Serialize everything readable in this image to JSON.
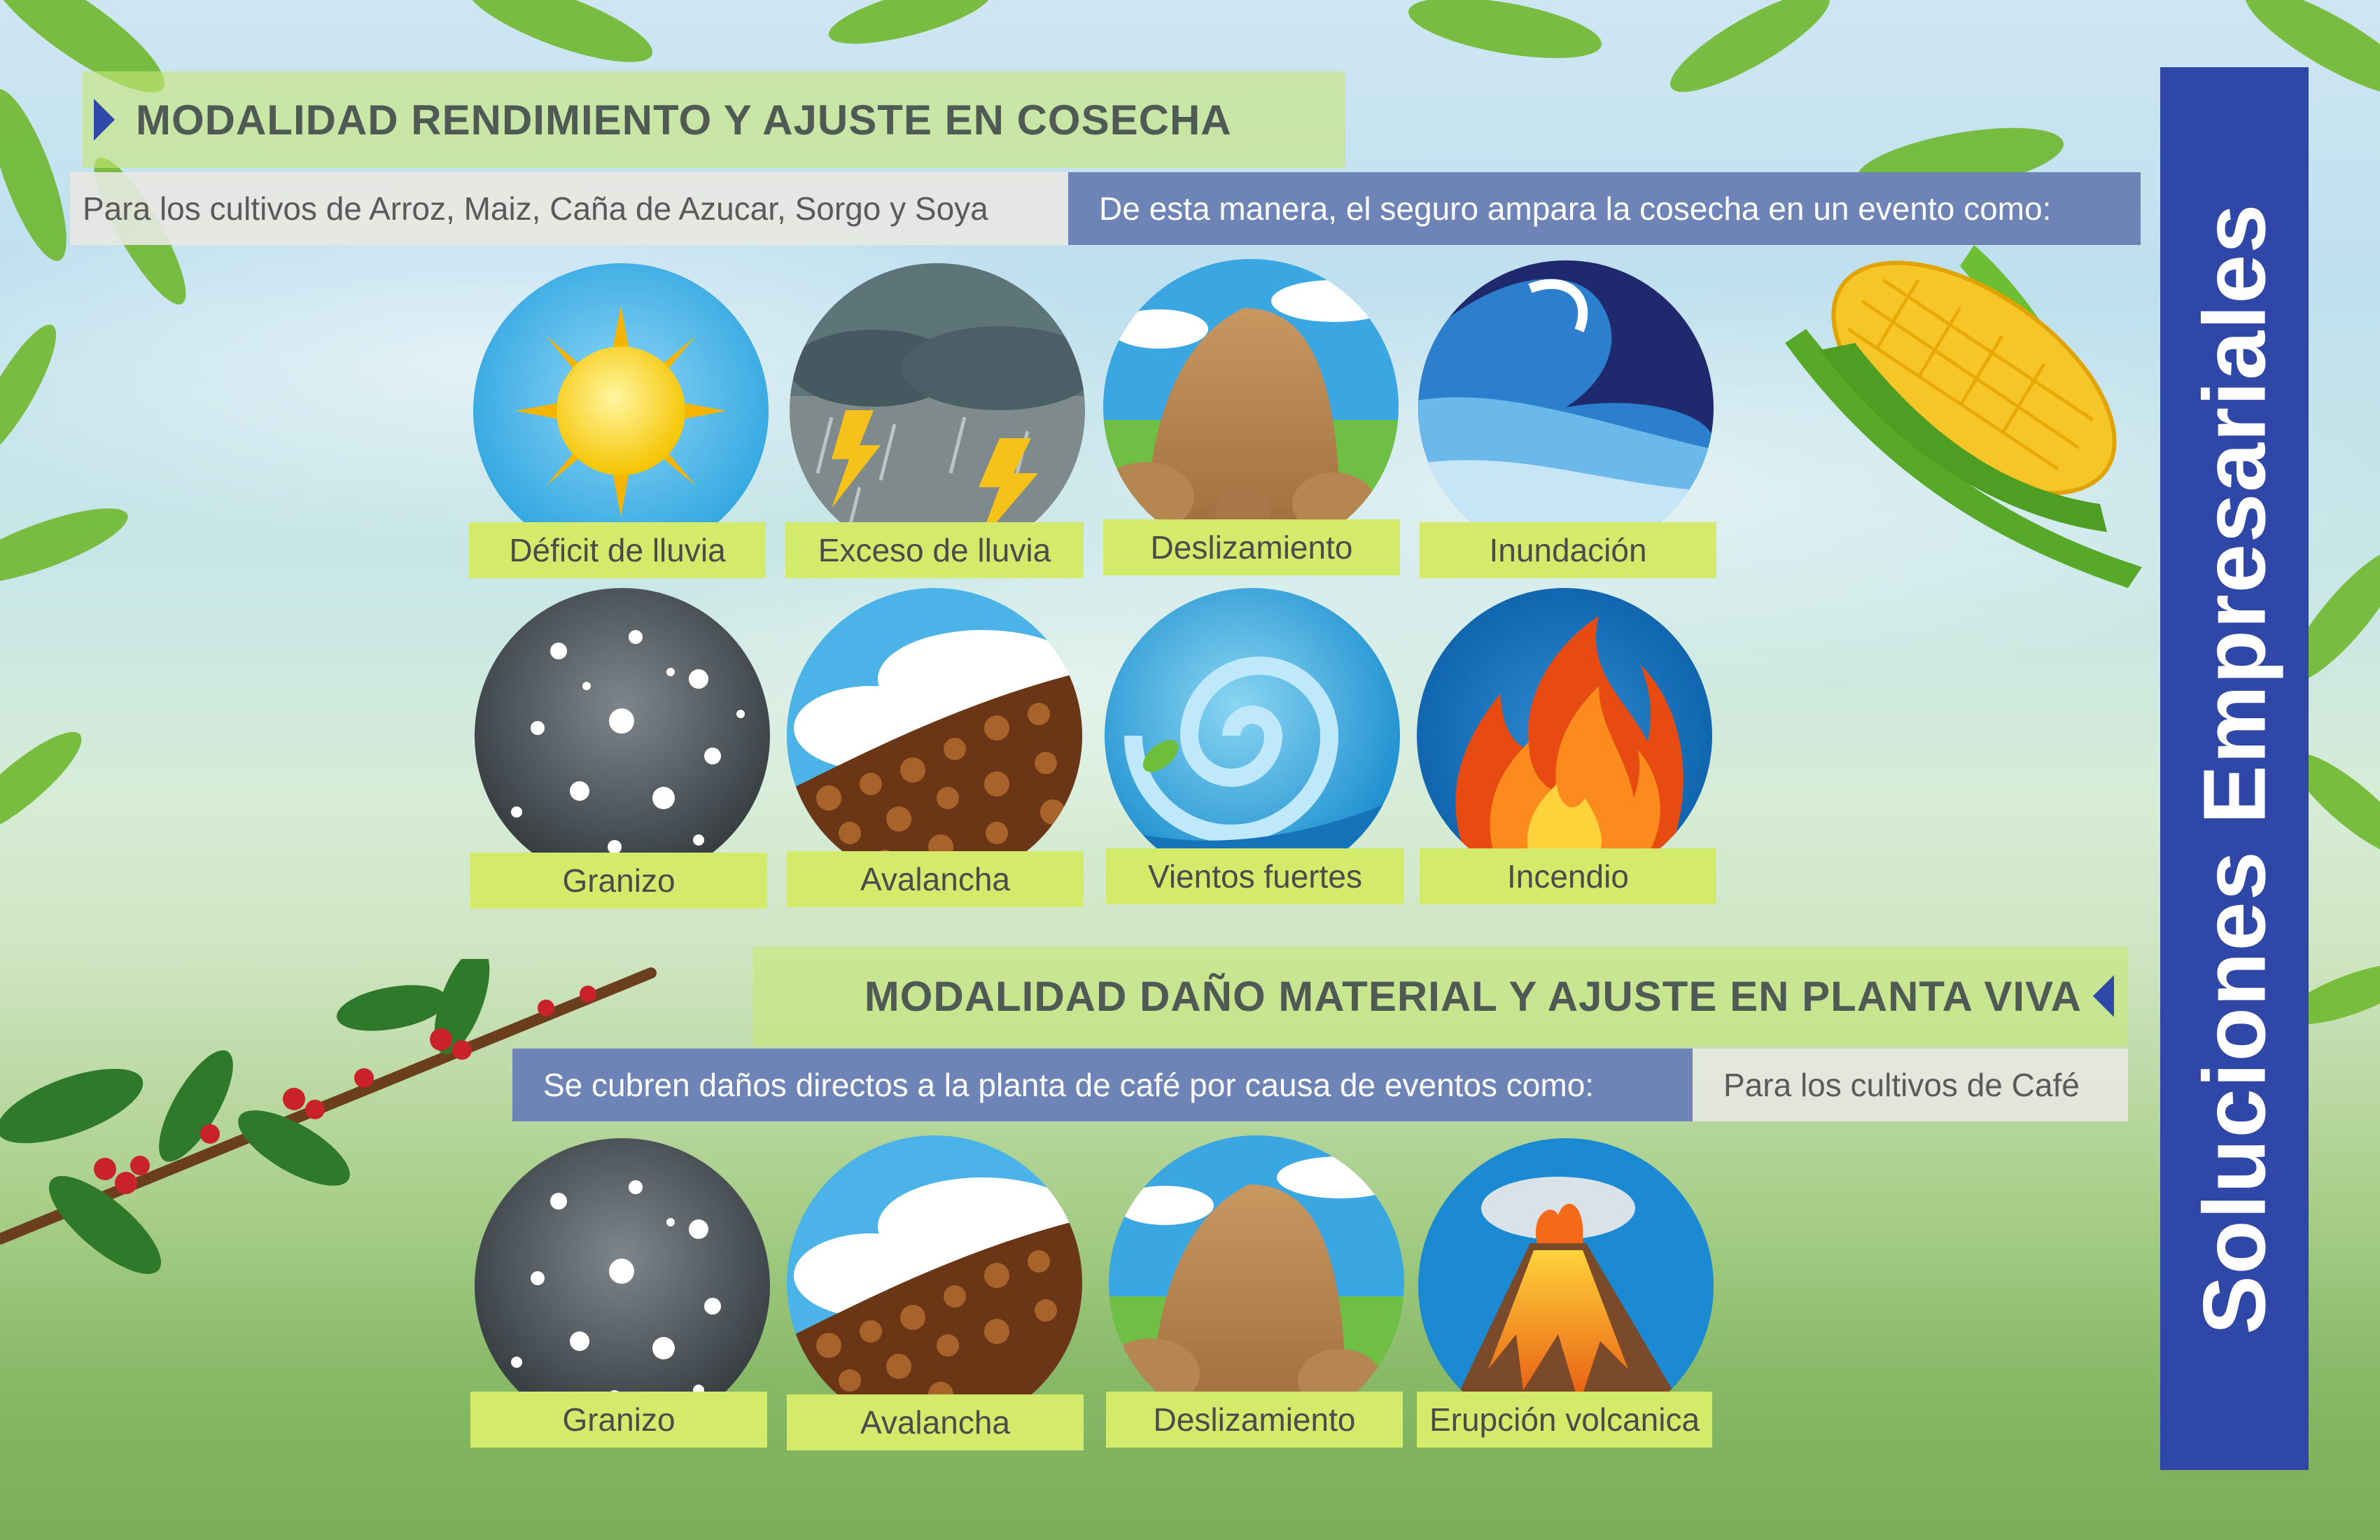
{
  "section1": {
    "title": "MODALIDAD RENDIMIENTO Y AJUSTE EN COSECHA",
    "crops_text": "Para los cultivos de Arroz, Maiz, Caña de Azucar, Sorgo y Soya",
    "coverage_text": "De esta manera, el seguro ampara la cosecha en un evento como:",
    "events": [
      {
        "label": "Déficit de lluvia",
        "icon": "sun-icon"
      },
      {
        "label": "Exceso de lluvia",
        "icon": "storm-icon"
      },
      {
        "label": "Deslizamiento",
        "icon": "landslide-icon"
      },
      {
        "label": "Inundación",
        "icon": "flood-wave-icon"
      },
      {
        "label": "Granizo",
        "icon": "hail-icon"
      },
      {
        "label": "Avalancha",
        "icon": "avalanche-icon"
      },
      {
        "label": "Vientos fuertes",
        "icon": "wind-swirl-icon"
      },
      {
        "label": "Incendio",
        "icon": "fire-icon"
      }
    ]
  },
  "section2": {
    "title": "MODALIDAD DAÑO MATERIAL Y AJUSTE EN PLANTA VIVA",
    "coverage_text": "Se cubren daños directos a la planta de café por causa de eventos como:",
    "crops_text": "Para los cultivos de Café",
    "events": [
      {
        "label": "Granizo",
        "icon": "hail-icon"
      },
      {
        "label": "Avalancha",
        "icon": "avalanche-icon"
      },
      {
        "label": "Deslizamiento",
        "icon": "landslide-icon"
      },
      {
        "label": "Erupción volcanica",
        "icon": "volcano-icon"
      }
    ]
  },
  "sidebar": {
    "title": "Soluciones Empresariales"
  },
  "colors": {
    "accent_blue": "#2f48a8",
    "label_green": "#d3ea6a",
    "band_blue": "#6f84b6"
  }
}
